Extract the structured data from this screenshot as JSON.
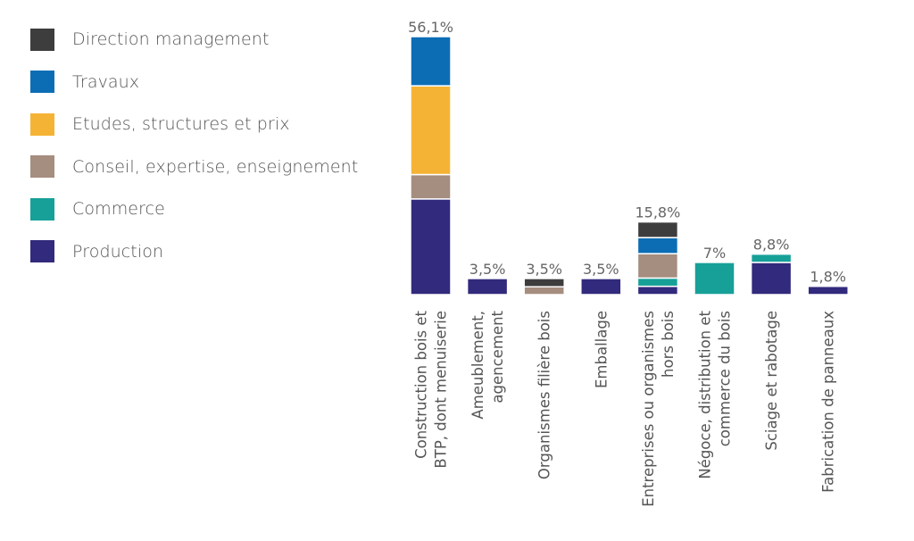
{
  "chart_data": {
    "type": "bar",
    "stacked": true,
    "legend_position": "left",
    "grid": false,
    "title": "",
    "xlabel": "",
    "ylabel": "",
    "ylim": [
      0,
      56.1
    ],
    "categories": [
      [
        "Construction bois et",
        "BTP, dont menuiserie"
      ],
      [
        "Ameublement,",
        "agencement"
      ],
      [
        "Organismes filière bois"
      ],
      [
        "Emballage"
      ],
      [
        "Entreprises ou organismes",
        "hors bois"
      ],
      [
        "Négoce, distribution et",
        "commerce du bois"
      ],
      [
        "Sciage et rabotage"
      ],
      [
        "Fabrication de panneaux"
      ]
    ],
    "totals_labels": [
      "56,1%",
      "3,5%",
      "3,5%",
      "3,5%",
      "15,8%",
      "7%",
      "8,8%",
      "1,8%"
    ],
    "totals": [
      56.1,
      3.5,
      3.5,
      3.5,
      15.8,
      7.0,
      8.8,
      1.8
    ],
    "series": [
      {
        "name": "Production",
        "color": "#322a7c",
        "values": [
          20.8,
          3.5,
          0,
          3.5,
          1.8,
          0,
          7.0,
          1.8
        ]
      },
      {
        "name": "Commerce",
        "color": "#17a098",
        "values": [
          0,
          0,
          0,
          0,
          1.8,
          7.0,
          1.8,
          0
        ]
      },
      {
        "name": "Conseil, expertise, enseignement",
        "color": "#a58d7f",
        "values": [
          5.3,
          0,
          1.7,
          0,
          5.3,
          0,
          0,
          0
        ]
      },
      {
        "name": "Etudes, structures et prix",
        "color": "#f5b335",
        "values": [
          19.3,
          0,
          0,
          0,
          0,
          0,
          0,
          0
        ]
      },
      {
        "name": "Travaux",
        "color": "#0c6db5",
        "values": [
          10.7,
          0,
          0,
          0,
          3.5,
          0,
          0,
          0
        ]
      },
      {
        "name": "Direction management",
        "color": "#3d3d3d",
        "values": [
          0,
          0,
          1.8,
          0,
          3.4,
          0,
          0,
          0
        ]
      }
    ],
    "legend_order": [
      "Direction management",
      "Travaux",
      "Etudes, structures et prix",
      "Conseil, expertise, enseignement",
      "Commerce",
      "Production"
    ]
  }
}
